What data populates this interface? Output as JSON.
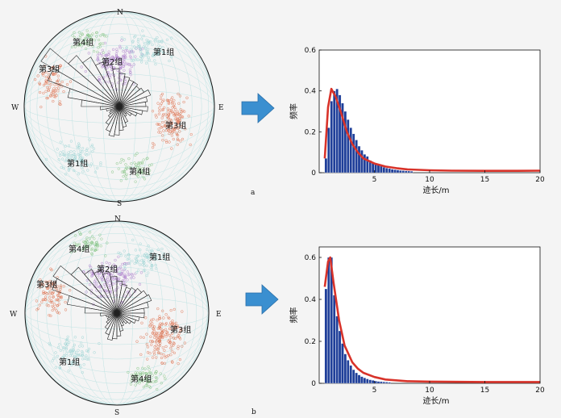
{
  "panel_a": {
    "letter": "a",
    "stereonet": {
      "directions": {
        "N": "N",
        "E": "E",
        "S": "S",
        "W": "W"
      },
      "group_labels": [
        "第4组",
        "第2组",
        "第1组",
        "第3组",
        "第3组",
        "第1组",
        "第4组"
      ]
    }
  },
  "panel_b": {
    "letter": "b",
    "stereonet": {
      "directions": {
        "N": "N",
        "E": "E",
        "S": "S",
        "W": "W"
      },
      "group_labels": [
        "第4组",
        "第1组",
        "第2组",
        "第3组",
        "第3组",
        "第1组",
        "第4组"
      ]
    }
  },
  "colors": {
    "group1": "#9fd6d6",
    "group2": "#b48ad0",
    "group3": "#e07a5a",
    "group4": "#8cc88c",
    "bar": "#1f3f99",
    "curve": "#d8332a",
    "arrow": "#3a8fd0"
  },
  "chart_data": [
    {
      "type": "bar",
      "panel": "a",
      "xlabel": "迹长/m",
      "ylabel": "频率",
      "xlim": [
        0,
        20
      ],
      "ylim": [
        0,
        0.6
      ],
      "xticks": [
        5,
        10,
        15,
        20
      ],
      "yticks": [
        0,
        0.2,
        0.4,
        0.6
      ],
      "bin_width": 0.25,
      "bin_start": 0.5,
      "values": [
        0.07,
        0.22,
        0.35,
        0.4,
        0.41,
        0.38,
        0.34,
        0.3,
        0.26,
        0.22,
        0.19,
        0.16,
        0.13,
        0.11,
        0.09,
        0.08,
        0.06,
        0.05,
        0.045,
        0.038,
        0.032,
        0.027,
        0.023,
        0.02,
        0.017,
        0.015,
        0.013,
        0.011,
        0.01,
        0.009,
        0.008,
        0.007
      ],
      "curve": [
        [
          0.5,
          0.07
        ],
        [
          0.8,
          0.32
        ],
        [
          1.1,
          0.41
        ],
        [
          1.5,
          0.37
        ],
        [
          2,
          0.29
        ],
        [
          2.5,
          0.2
        ],
        [
          3,
          0.14
        ],
        [
          3.5,
          0.1
        ],
        [
          4,
          0.07
        ],
        [
          5,
          0.045
        ],
        [
          6,
          0.03
        ],
        [
          7,
          0.022
        ],
        [
          8,
          0.016
        ],
        [
          10,
          0.012
        ],
        [
          12,
          0.01
        ],
        [
          15,
          0.009
        ],
        [
          18,
          0.009
        ],
        [
          20,
          0.01
        ]
      ]
    },
    {
      "type": "bar",
      "panel": "b",
      "xlabel": "迹长/m",
      "ylabel": "频率",
      "xlim": [
        0,
        20
      ],
      "ylim": [
        0,
        0.65
      ],
      "xticks": [
        5,
        10,
        15,
        20
      ],
      "yticks": [
        0,
        0.2,
        0.4,
        0.6
      ],
      "bin_width": 0.25,
      "bin_start": 0.5,
      "values": [
        0.45,
        0.6,
        0.6,
        0.42,
        0.32,
        0.25,
        0.19,
        0.14,
        0.11,
        0.085,
        0.065,
        0.05,
        0.04,
        0.032,
        0.026,
        0.021,
        0.017,
        0.014,
        0.011,
        0.009,
        0.008,
        0.007,
        0.006,
        0.005
      ],
      "curve": [
        [
          0.5,
          0.46
        ],
        [
          0.8,
          0.58
        ],
        [
          1.0,
          0.6
        ],
        [
          1.3,
          0.48
        ],
        [
          1.8,
          0.3
        ],
        [
          2.3,
          0.18
        ],
        [
          3,
          0.1
        ],
        [
          3.5,
          0.07
        ],
        [
          4,
          0.05
        ],
        [
          5,
          0.03
        ],
        [
          6,
          0.018
        ],
        [
          8,
          0.01
        ],
        [
          10,
          0.008
        ],
        [
          15,
          0.006
        ],
        [
          20,
          0.006
        ]
      ]
    }
  ]
}
